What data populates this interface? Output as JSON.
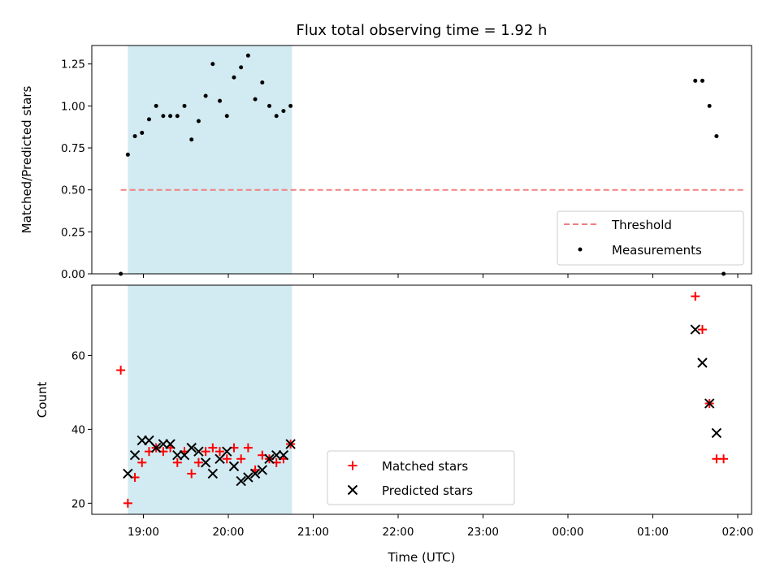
{
  "chart_data": {
    "title": "Flux total observing time = 1.92 h",
    "xlabel": "Time (UTC)",
    "x_ticks": [
      "19:00",
      "20:00",
      "21:00",
      "22:00",
      "23:00",
      "00:00",
      "01:00",
      "02:00"
    ],
    "highlight_span": [
      "18:49",
      "20:45"
    ],
    "colors": {
      "span": "#add8e6",
      "threshold": "#f08080",
      "measurements": "#000000",
      "matched": "#ff0000",
      "predicted": "#000000"
    },
    "panels": [
      {
        "type": "scatter",
        "ylabel": "Matched/Predicted stars",
        "ylim": [
          0,
          1.36
        ],
        "y_ticks": [
          "0.00",
          "0.25",
          "0.50",
          "0.75",
          "1.00",
          "1.25"
        ],
        "legend_position": "lower-right",
        "threshold": {
          "name": "Threshold",
          "y": 0.5,
          "x_range": [
            "18:44",
            "02:05"
          ]
        },
        "series": [
          {
            "name": "Measurements",
            "marker": "dot",
            "points": [
              [
                "18:44",
                0.0
              ],
              [
                "18:49",
                0.71
              ],
              [
                "18:54",
                0.82
              ],
              [
                "18:59",
                0.84
              ],
              [
                "19:04",
                0.92
              ],
              [
                "19:09",
                1.0
              ],
              [
                "19:14",
                0.94
              ],
              [
                "19:19",
                0.94
              ],
              [
                "19:24",
                0.94
              ],
              [
                "19:29",
                1.0
              ],
              [
                "19:34",
                0.8
              ],
              [
                "19:39",
                0.91
              ],
              [
                "19:44",
                1.06
              ],
              [
                "19:49",
                1.25
              ],
              [
                "19:54",
                1.03
              ],
              [
                "19:59",
                0.94
              ],
              [
                "20:04",
                1.17
              ],
              [
                "20:09",
                1.23
              ],
              [
                "20:14",
                1.3
              ],
              [
                "20:19",
                1.04
              ],
              [
                "20:24",
                1.14
              ],
              [
                "20:29",
                1.0
              ],
              [
                "20:34",
                0.94
              ],
              [
                "20:39",
                0.97
              ],
              [
                "20:44",
                1.0
              ],
              [
                "01:30",
                1.15
              ],
              [
                "01:35",
                1.15
              ],
              [
                "01:40",
                1.0
              ],
              [
                "01:45",
                0.82
              ],
              [
                "01:50",
                0.0
              ]
            ]
          }
        ]
      },
      {
        "type": "scatter",
        "ylabel": "Count",
        "ylim": [
          17,
          79
        ],
        "y_ticks": [
          "20",
          "40",
          "60"
        ],
        "legend_position": "lower-center",
        "series": [
          {
            "name": "Matched stars",
            "marker": "plus",
            "points": [
              [
                "18:44",
                56
              ],
              [
                "18:49",
                20
              ],
              [
                "18:54",
                27
              ],
              [
                "18:59",
                31
              ],
              [
                "19:04",
                34
              ],
              [
                "19:09",
                35
              ],
              [
                "19:14",
                34
              ],
              [
                "19:19",
                35
              ],
              [
                "19:24",
                31
              ],
              [
                "19:29",
                34
              ],
              [
                "19:34",
                28
              ],
              [
                "19:39",
                31
              ],
              [
                "19:44",
                34
              ],
              [
                "19:49",
                35
              ],
              [
                "19:54",
                34
              ],
              [
                "19:59",
                32
              ],
              [
                "20:04",
                35
              ],
              [
                "20:09",
                32
              ],
              [
                "20:14",
                35
              ],
              [
                "20:19",
                29
              ],
              [
                "20:24",
                33
              ],
              [
                "20:29",
                32
              ],
              [
                "20:34",
                31
              ],
              [
                "20:39",
                32
              ],
              [
                "20:44",
                36
              ],
              [
                "01:30",
                76
              ],
              [
                "01:35",
                67
              ],
              [
                "01:40",
                47
              ],
              [
                "01:45",
                32
              ],
              [
                "01:50",
                32
              ]
            ]
          },
          {
            "name": "Predicted stars",
            "marker": "cross",
            "points": [
              [
                "18:49",
                28
              ],
              [
                "18:54",
                33
              ],
              [
                "18:59",
                37
              ],
              [
                "19:04",
                37
              ],
              [
                "19:09",
                35
              ],
              [
                "19:14",
                36
              ],
              [
                "19:19",
                36
              ],
              [
                "19:24",
                33
              ],
              [
                "19:29",
                33
              ],
              [
                "19:34",
                35
              ],
              [
                "19:39",
                34
              ],
              [
                "19:44",
                31
              ],
              [
                "19:49",
                28
              ],
              [
                "19:54",
                32
              ],
              [
                "19:59",
                34
              ],
              [
                "20:04",
                30
              ],
              [
                "20:09",
                26
              ],
              [
                "20:14",
                27
              ],
              [
                "20:19",
                28
              ],
              [
                "20:24",
                29
              ],
              [
                "20:29",
                32
              ],
              [
                "20:34",
                33
              ],
              [
                "20:39",
                33
              ],
              [
                "20:44",
                36
              ],
              [
                "01:30",
                67
              ],
              [
                "01:35",
                58
              ],
              [
                "01:40",
                47
              ],
              [
                "01:45",
                39
              ]
            ]
          }
        ]
      }
    ]
  }
}
